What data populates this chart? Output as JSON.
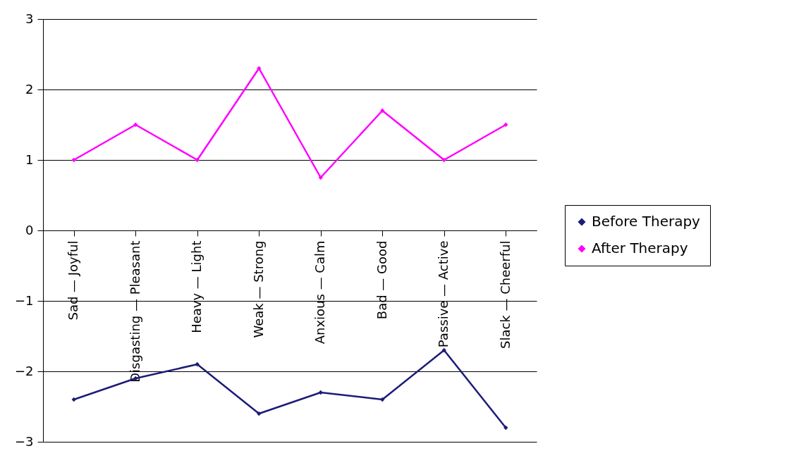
{
  "chart_data": {
    "type": "line",
    "categories": [
      "Sad — Joyful",
      "Disgasting — Pleasant",
      "Heavy — Light",
      "Weak — Strong",
      "Anxious — Calm",
      "Bad — Good",
      "Passive — Active",
      "Slack — Cheerful"
    ],
    "series": [
      {
        "name": "Before Therapy",
        "color": "#1c1c78",
        "values": [
          -2.4,
          -2.1,
          -1.9,
          -2.6,
          -2.3,
          -2.4,
          -1.7,
          -2.8
        ]
      },
      {
        "name": "After Therapy",
        "color": "#ff00ff",
        "values": [
          1,
          1.5,
          1,
          2.3,
          0.75,
          1.7,
          1,
          1.5
        ]
      }
    ],
    "ylim": [
      -3,
      3
    ],
    "yticks": [
      -3,
      -2,
      -1,
      0,
      1,
      2,
      3
    ],
    "grid": "y",
    "legend": "right",
    "marker": "diamond",
    "line_style": "solid"
  }
}
